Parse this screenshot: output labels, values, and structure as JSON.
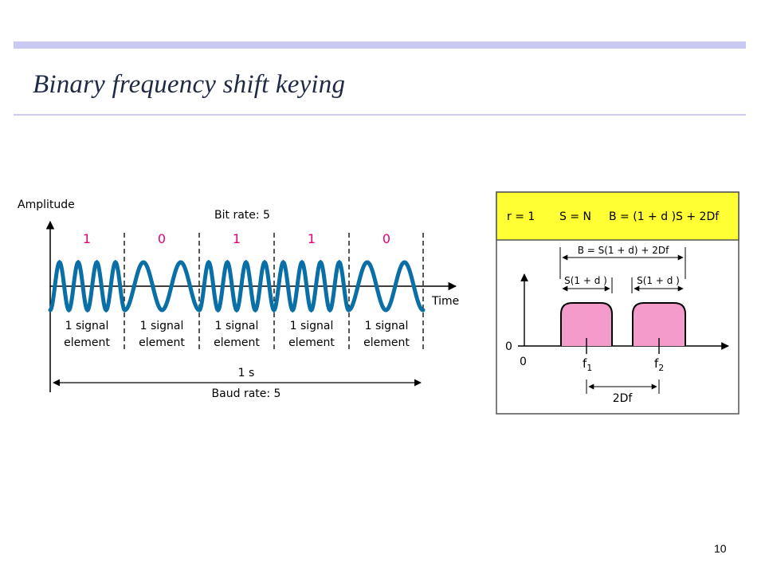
{
  "slide": {
    "title": "Binary frequency shift keying",
    "page_number": "10"
  },
  "waveform": {
    "y_axis_label": "Amplitude",
    "x_axis_label": "Time",
    "bit_rate_label": "Bit rate: 5",
    "bits": [
      "1",
      "0",
      "1",
      "1",
      "0"
    ],
    "cycles_per_bit": {
      "1": 4,
      "0": 2
    },
    "element_label_line1": "1 signal",
    "element_label_line2": "element",
    "duration_label": "1 s",
    "baud_rate_label": "Baud rate: 5",
    "colors": {
      "wave": "#0a6fa6",
      "bits": "#e4007c"
    }
  },
  "spectrum": {
    "header": {
      "r": "r = 1",
      "s": "S = N",
      "b": "B = (1 + d )S + 2Df"
    },
    "bandwidth_label": "B = S(1 + d) + 2Df",
    "band1_label": "S(1 + d )",
    "band2_label": "S(1 +  d )",
    "zero_y": "0",
    "zero_x": "0",
    "f1_base": "f",
    "f1_sub": "1",
    "f2_base": "f",
    "f2_sub": "2",
    "separation_label": "2Df",
    "colors": {
      "header_bg": "#ffff33",
      "band_fill": "#f49bcb"
    }
  }
}
